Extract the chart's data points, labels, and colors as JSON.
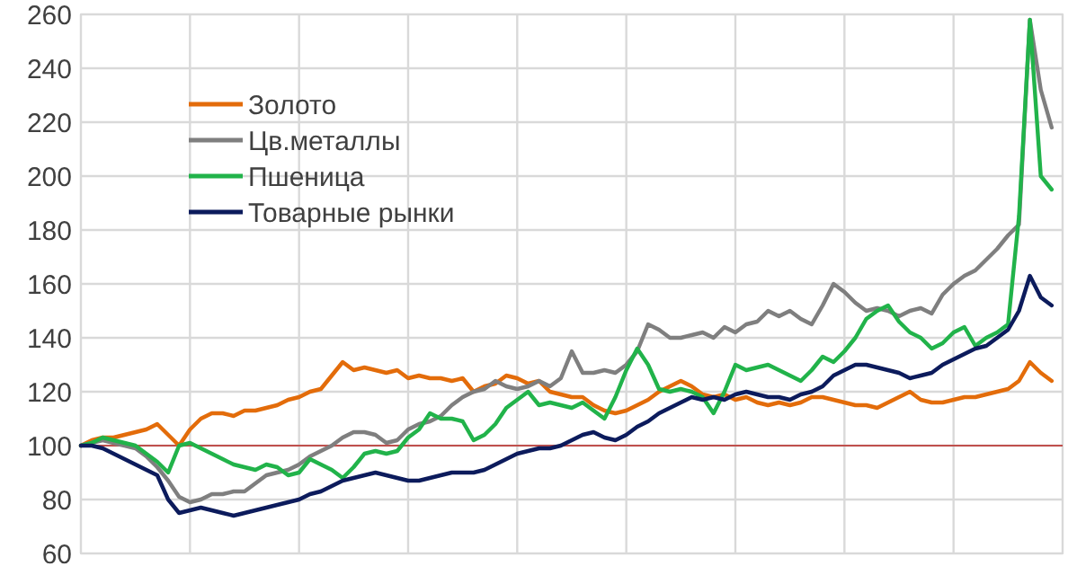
{
  "chart_data": {
    "type": "line",
    "categories": [
      null,
      null,
      null,
      null,
      null,
      null,
      null,
      null,
      null,
      null,
      null,
      null,
      null,
      null,
      null,
      null,
      null,
      null,
      null,
      null,
      null,
      null,
      null,
      null,
      null,
      null,
      null,
      null,
      null,
      null,
      null,
      null,
      null,
      null,
      null,
      null,
      null,
      null,
      null,
      null,
      null,
      null,
      null,
      null,
      null,
      null,
      null,
      null,
      null,
      null,
      null,
      null,
      null,
      null,
      null,
      null,
      null,
      null,
      null,
      null,
      null,
      null,
      null,
      null,
      null,
      null,
      null,
      null,
      null,
      null,
      null,
      null,
      null,
      null,
      null,
      null,
      null,
      null,
      null,
      null,
      null,
      null,
      null,
      null,
      null,
      null,
      null,
      null,
      null,
      null,
      null
    ],
    "series": [
      {
        "name": "Золото",
        "color": "#e36c0a",
        "values": [
          100,
          102,
          103,
          103,
          104,
          105,
          106,
          108,
          104,
          100,
          106,
          110,
          112,
          112,
          111,
          113,
          113,
          114,
          115,
          117,
          118,
          120,
          121,
          126,
          131,
          128,
          129,
          128,
          127,
          128,
          125,
          126,
          125,
          125,
          124,
          125,
          120,
          122,
          123,
          126,
          125,
          123,
          124,
          120,
          119,
          118,
          118,
          115,
          113,
          112,
          113,
          115,
          117,
          120,
          122,
          124,
          122,
          119,
          118,
          119,
          117,
          118,
          116,
          115,
          116,
          115,
          116,
          118,
          118,
          117,
          116,
          115,
          115,
          114,
          116,
          118,
          120,
          117,
          116,
          116,
          117,
          118,
          118,
          119,
          120,
          121,
          124,
          131,
          127,
          124,
          null
        ]
      },
      {
        "name": "Цв.металлы",
        "color": "#7f7f7f",
        "values": [
          100,
          101,
          102,
          101,
          100,
          99,
          96,
          92,
          87,
          81,
          79,
          80,
          82,
          82,
          83,
          83,
          86,
          89,
          90,
          91,
          93,
          96,
          98,
          100,
          103,
          105,
          105,
          104,
          101,
          102,
          106,
          108,
          109,
          111,
          115,
          118,
          120,
          121,
          124,
          122,
          121,
          122,
          124,
          122,
          125,
          135,
          127,
          127,
          128,
          127,
          130,
          135,
          145,
          143,
          140,
          140,
          141,
          142,
          140,
          144,
          142,
          145,
          146,
          150,
          148,
          150,
          147,
          145,
          152,
          160,
          157,
          153,
          150,
          151,
          150,
          148,
          150,
          151,
          149,
          156,
          160,
          163,
          165,
          169,
          173,
          178,
          182,
          258,
          232,
          218,
          null
        ]
      },
      {
        "name": "Пшеница",
        "color": "#21b34a",
        "values": [
          100,
          101,
          103,
          102,
          101,
          100,
          97,
          94,
          90,
          100,
          101,
          99,
          97,
          95,
          93,
          92,
          91,
          93,
          92,
          89,
          90,
          95,
          93,
          91,
          88,
          92,
          97,
          98,
          97,
          98,
          103,
          106,
          112,
          110,
          110,
          109,
          102,
          104,
          108,
          114,
          117,
          120,
          115,
          116,
          115,
          114,
          116,
          113,
          110,
          118,
          128,
          136,
          130,
          121,
          120,
          121,
          120,
          118,
          112,
          120,
          130,
          128,
          129,
          130,
          128,
          126,
          124,
          128,
          133,
          131,
          135,
          140,
          147,
          150,
          152,
          146,
          142,
          140,
          136,
          138,
          142,
          144,
          137,
          140,
          142,
          145,
          185,
          258,
          200,
          195,
          null
        ]
      },
      {
        "name": "Товарные рынки",
        "color": "#0c1b5c",
        "values": [
          100,
          100,
          99,
          97,
          95,
          93,
          91,
          89,
          80,
          75,
          76,
          77,
          76,
          75,
          74,
          75,
          76,
          77,
          78,
          79,
          80,
          82,
          83,
          85,
          87,
          88,
          89,
          90,
          89,
          88,
          87,
          87,
          88,
          89,
          90,
          90,
          90,
          91,
          93,
          95,
          97,
          98,
          99,
          99,
          100,
          102,
          104,
          105,
          103,
          102,
          104,
          107,
          109,
          112,
          114,
          116,
          118,
          117,
          118,
          117,
          119,
          120,
          119,
          118,
          118,
          117,
          119,
          120,
          122,
          126,
          128,
          130,
          130,
          129,
          128,
          127,
          125,
          126,
          127,
          130,
          132,
          134,
          136,
          137,
          140,
          143,
          150,
          163,
          155,
          152,
          null
        ]
      }
    ],
    "ylim": [
      60,
      260
    ],
    "yticks": [
      60,
      80,
      100,
      120,
      140,
      160,
      180,
      200,
      220,
      240,
      260
    ],
    "grid": true,
    "legend": "top left",
    "ref_lines": [
      {
        "axis": "y",
        "value": 100,
        "color": "#c0504d"
      }
    ]
  }
}
